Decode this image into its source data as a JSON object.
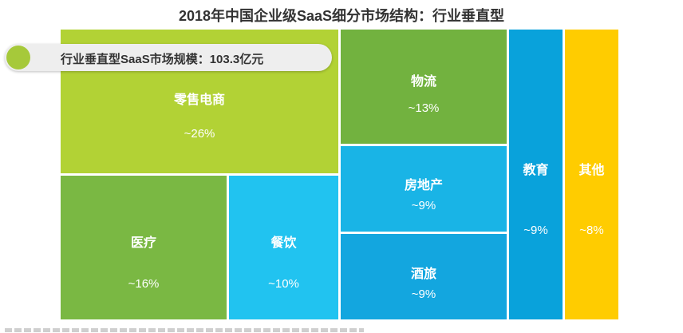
{
  "chart_data": {
    "type": "treemap",
    "title": "2018年中国企业级SaaS细分市场结构：行业垂直型",
    "annotation": "行业垂直型SaaS市场规模：103.3亿元",
    "items": [
      {
        "label": "零售电商",
        "value_label": "~26%",
        "value": 26,
        "color": "#b2d235"
      },
      {
        "label": "医疗",
        "value_label": "~16%",
        "value": 16,
        "color": "#7ab843"
      },
      {
        "label": "餐饮",
        "value_label": "~10%",
        "value": 10,
        "color": "#21c3f0"
      },
      {
        "label": "物流",
        "value_label": "~13%",
        "value": 13,
        "color": "#72b23f"
      },
      {
        "label": "房地产",
        "value_label": "~9%",
        "value": 9,
        "color": "#19b4e6"
      },
      {
        "label": "酒旅",
        "value_label": "~9%",
        "value": 9,
        "color": "#13a6df"
      },
      {
        "label": "教育",
        "value_label": "~9%",
        "value": 9,
        "color": "#09a2db"
      },
      {
        "label": "其他",
        "value_label": "~8%",
        "value": 8,
        "color": "#ffcc00"
      }
    ]
  }
}
